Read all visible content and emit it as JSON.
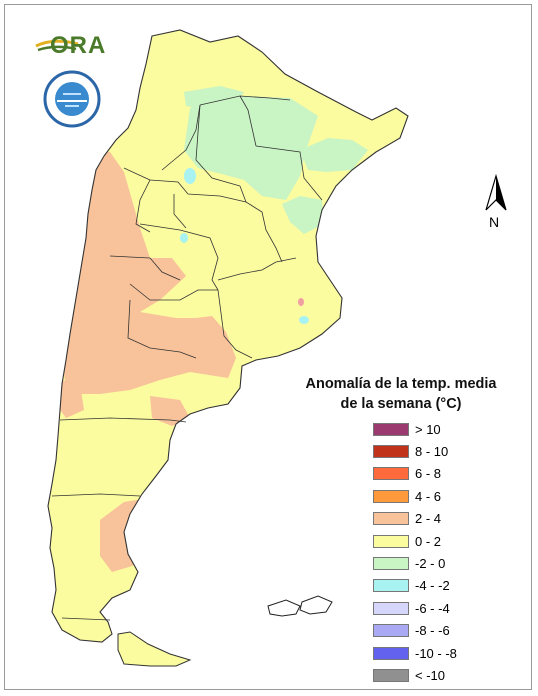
{
  "logo": {
    "text": "ORA"
  },
  "north_arrow": {
    "label": "N"
  },
  "legend": {
    "title_line1": "Anomalía de la temp. media",
    "title_line2": "de la semana (°C)",
    "items": [
      {
        "label": "> 10",
        "color": "#9b3a6e"
      },
      {
        "label": "8 - 10",
        "color": "#c0321a"
      },
      {
        "label": "6 - 8",
        "color": "#ff6a3d"
      },
      {
        "label": "4 - 6",
        "color": "#ff9a3c"
      },
      {
        "label": "2 - 4",
        "color": "#f8c29a"
      },
      {
        "label": "0 - 2",
        "color": "#fbfba0"
      },
      {
        "label": "-2 - 0",
        "color": "#c9f4c4"
      },
      {
        "label": "-4 - -2",
        "color": "#a9f2f2"
      },
      {
        "label": "-6 - -4",
        "color": "#d6d6fa"
      },
      {
        "label": "-8 - -6",
        "color": "#a9a9f4"
      },
      {
        "label": "-10 - -8",
        "color": "#6262ee"
      },
      {
        "label": "< -10",
        "color": "#909090"
      }
    ]
  }
}
